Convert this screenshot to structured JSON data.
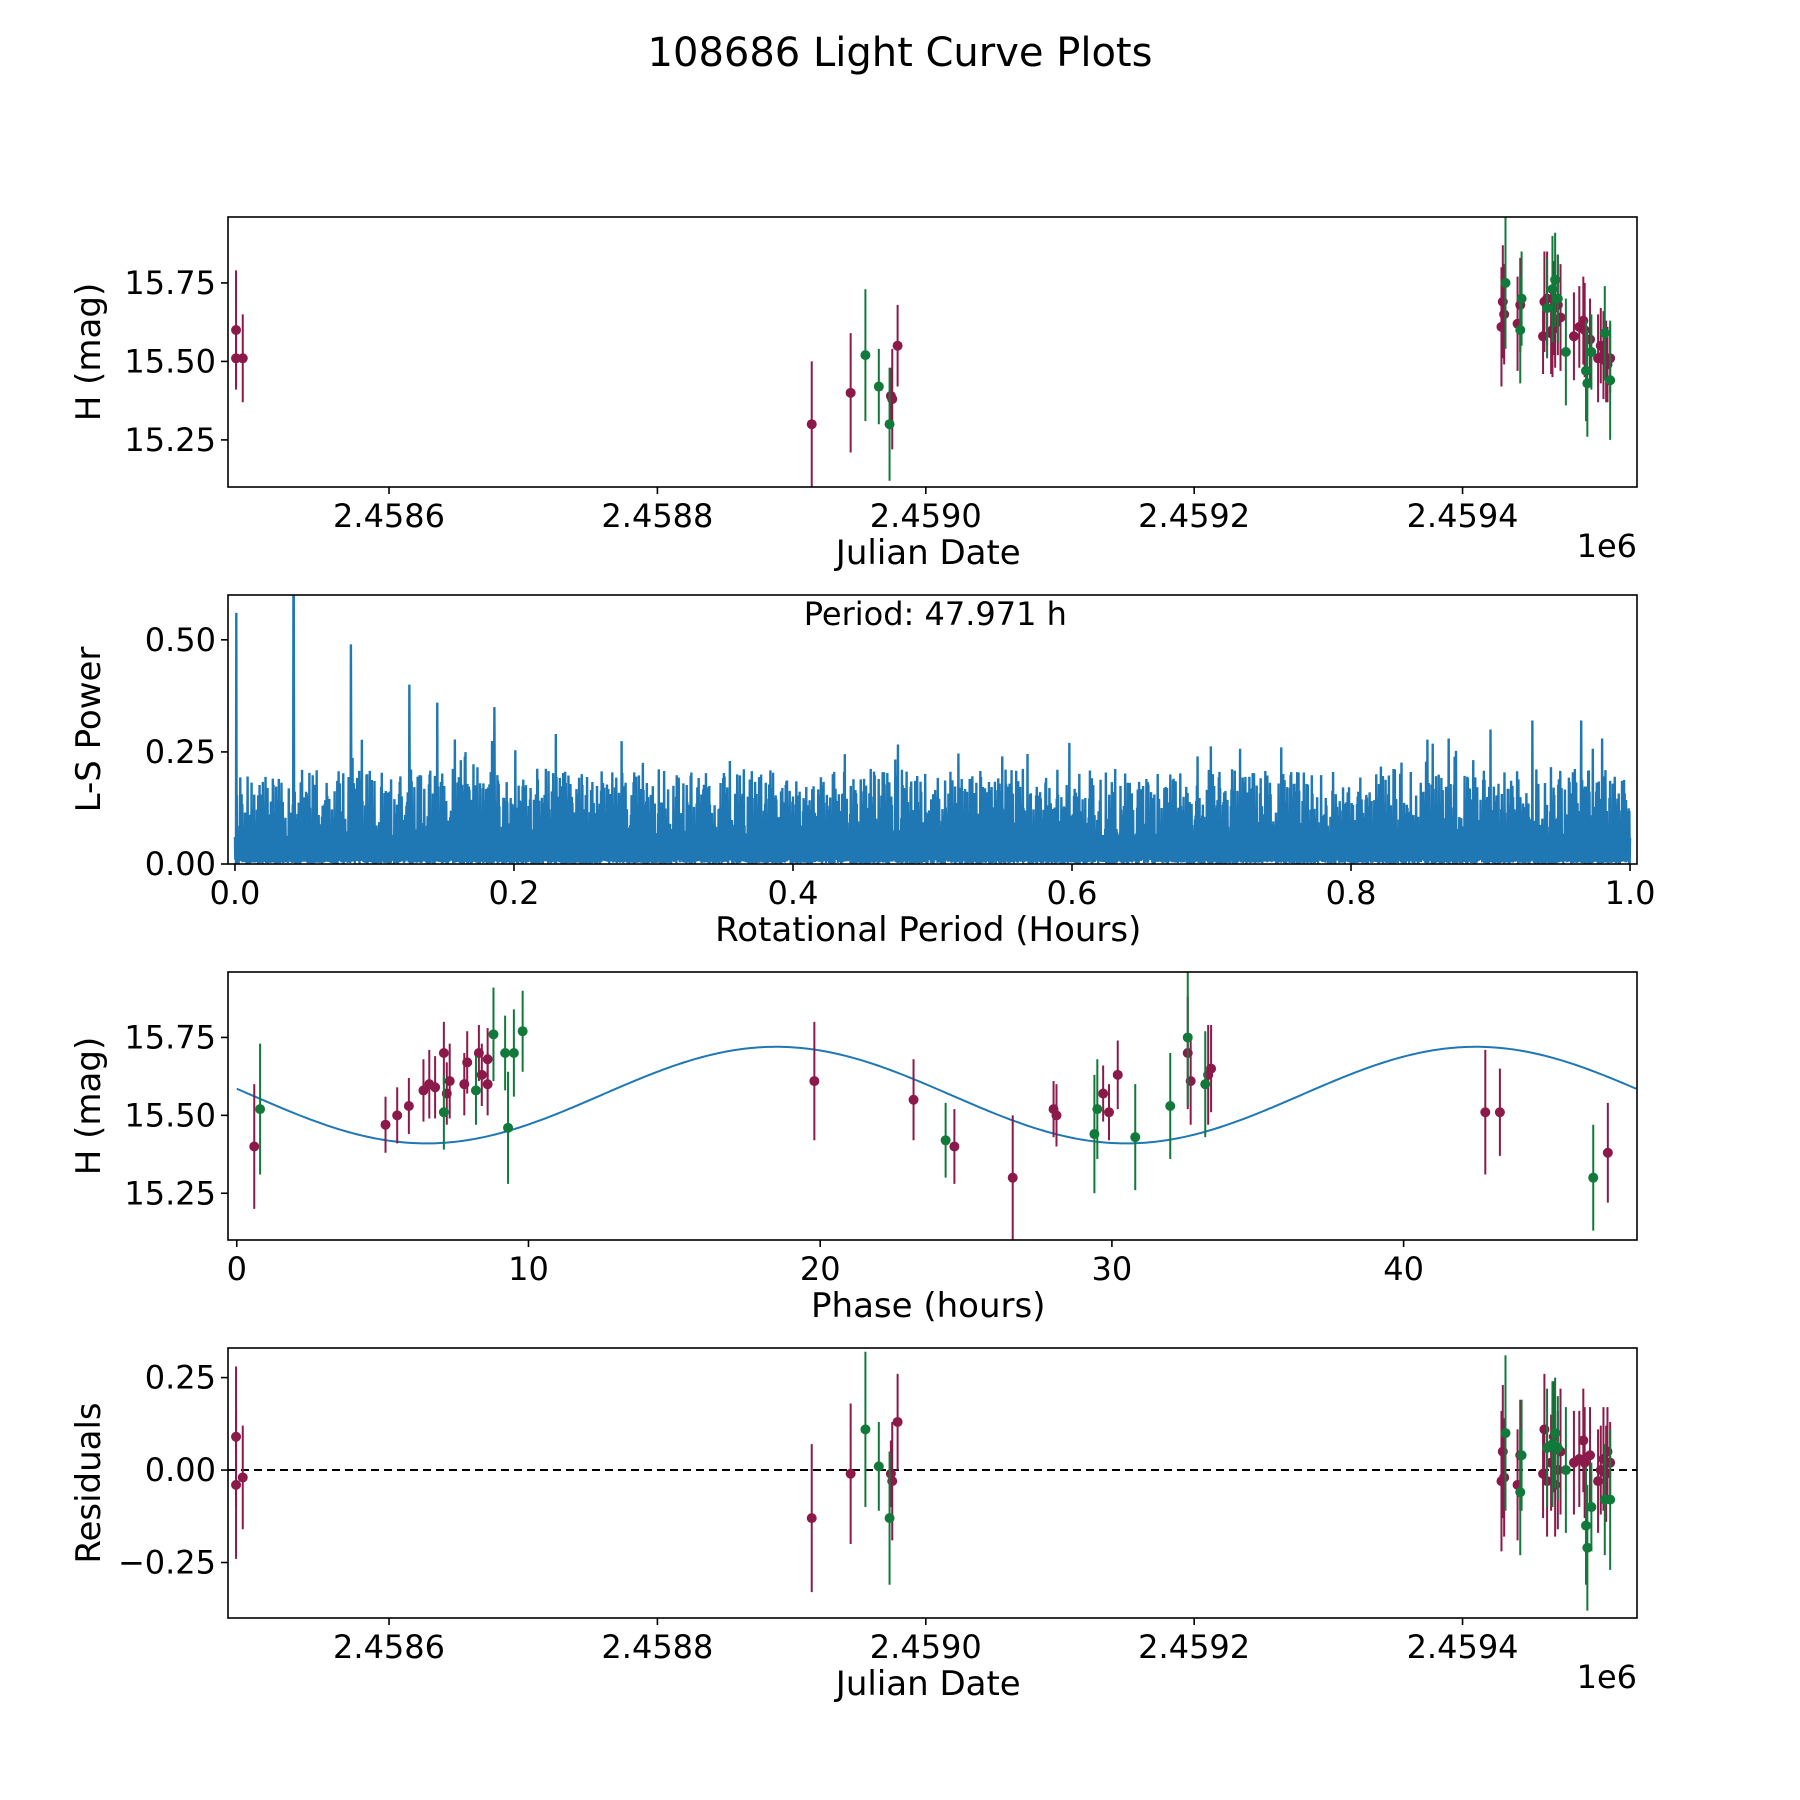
{
  "title": "108686 Light Curve Plots",
  "colors": {
    "band_a": "#8B1A4A",
    "band_b": "#117A3A",
    "model": "#1f77b4",
    "text": "#000000"
  },
  "chart_data": [
    {
      "type": "scatter",
      "name": "light-curve",
      "xlabel": "Julian Date",
      "ylabel": "H (mag)",
      "x_offset_label": "1e6",
      "xlim": [
        2.45848,
        2.45953
      ],
      "ylim": [
        15.1,
        15.96
      ],
      "xticks": [
        2.4586,
        2.4588,
        2.459,
        2.4592,
        2.4594
      ],
      "xtick_labels": [
        "2.4586",
        "2.4588",
        "2.4590",
        "2.4592",
        "2.4594"
      ],
      "yticks": [
        15.25,
        15.5,
        15.75
      ],
      "ytick_labels": [
        "15.25",
        "15.50",
        "15.75"
      ],
      "series": [
        {
          "name": "band_a",
          "color_key": "band_a",
          "points": [
            [
              2.458486,
              15.51,
              0.09
            ],
            [
              2.458486,
              15.6,
              0.19
            ],
            [
              2.458491,
              15.51,
              0.14
            ],
            [
              2.458915,
              15.3,
              0.2
            ],
            [
              2.458944,
              15.4,
              0.19
            ],
            [
              2.458974,
              15.39,
              0.09
            ],
            [
              2.458975,
              15.38,
              0.16
            ],
            [
              2.458979,
              15.55,
              0.13
            ],
            [
              2.459429,
              15.61,
              0.19
            ],
            [
              2.45943,
              15.69,
              0.18
            ],
            [
              2.459431,
              15.65,
              0.16
            ],
            [
              2.459441,
              15.62,
              0.15
            ],
            [
              2.459443,
              15.68,
              0.15
            ],
            [
              2.45946,
              15.58,
              0.12
            ],
            [
              2.459461,
              15.69,
              0.16
            ],
            [
              2.459463,
              15.7,
              0.15
            ],
            [
              2.459466,
              15.59,
              0.13
            ],
            [
              2.459467,
              15.6,
              0.15
            ],
            [
              2.459468,
              15.67,
              0.15
            ],
            [
              2.459469,
              15.62,
              0.14
            ],
            [
              2.459471,
              15.68,
              0.16
            ],
            [
              2.459473,
              15.64,
              0.17
            ],
            [
              2.459483,
              15.58,
              0.14
            ],
            [
              2.459487,
              15.61,
              0.13
            ],
            [
              2.45949,
              15.63,
              0.14
            ],
            [
              2.459491,
              15.6,
              0.15
            ],
            [
              2.459495,
              15.57,
              0.13
            ],
            [
              2.459501,
              15.51,
              0.14
            ],
            [
              2.459503,
              15.55,
              0.12
            ],
            [
              2.459505,
              15.52,
              0.14
            ],
            [
              2.459507,
              15.5,
              0.13
            ],
            [
              2.459508,
              15.49,
              0.12
            ],
            [
              2.45951,
              15.51,
              0.11
            ]
          ]
        },
        {
          "name": "band_b",
          "color_key": "band_b",
          "points": [
            [
              2.458955,
              15.52,
              0.21
            ],
            [
              2.458965,
              15.42,
              0.12
            ],
            [
              2.458973,
              15.3,
              0.18
            ],
            [
              2.459432,
              15.75,
              0.21
            ],
            [
              2.459443,
              15.6,
              0.17
            ],
            [
              2.459444,
              15.7,
              0.15
            ],
            [
              2.459463,
              15.67,
              0.16
            ],
            [
              2.459467,
              15.73,
              0.17
            ],
            [
              2.459469,
              15.76,
              0.15
            ],
            [
              2.459471,
              15.7,
              0.14
            ],
            [
              2.459477,
              15.53,
              0.17
            ],
            [
              2.459492,
              15.47,
              0.16
            ],
            [
              2.459493,
              15.43,
              0.17
            ],
            [
              2.459496,
              15.53,
              0.12
            ],
            [
              2.459506,
              15.59,
              0.15
            ],
            [
              2.45951,
              15.44,
              0.19
            ]
          ]
        }
      ]
    },
    {
      "type": "line",
      "name": "periodogram",
      "xlabel": "Rotational Period (Hours)",
      "ylabel": "L-S Power",
      "annotation": "Period: 47.971 h",
      "xlim": [
        -0.005,
        1.005
      ],
      "ylim": [
        0,
        0.6
      ],
      "xticks": [
        0.0,
        0.2,
        0.4,
        0.6,
        0.8,
        1.0
      ],
      "xtick_labels": [
        "0.0",
        "0.2",
        "0.4",
        "0.6",
        "0.8",
        "1.0"
      ],
      "yticks": [
        0.0,
        0.25,
        0.5
      ],
      "ytick_labels": [
        "0.00",
        "0.25",
        "0.50"
      ],
      "range": [
        0.0,
        1.0
      ],
      "noise_floor": 0.13,
      "noise_amp": 0.07,
      "peaks": [
        [
          0.001,
          0.56
        ],
        [
          0.042,
          0.6
        ],
        [
          0.083,
          0.49
        ],
        [
          0.125,
          0.4
        ],
        [
          0.145,
          0.36
        ],
        [
          0.186,
          0.35
        ],
        [
          0.23,
          0.29
        ],
        [
          0.55,
          0.24
        ],
        [
          0.69,
          0.24
        ],
        [
          0.75,
          0.26
        ],
        [
          0.87,
          0.28
        ],
        [
          0.9,
          0.3
        ],
        [
          0.93,
          0.32
        ],
        [
          0.965,
          0.32
        ],
        [
          0.98,
          0.28
        ]
      ]
    },
    {
      "type": "scatter",
      "name": "phased-curve",
      "xlabel": "Phase (hours)",
      "ylabel": "H (mag)",
      "xlim": [
        -0.3,
        48.0
      ],
      "ylim": [
        15.1,
        15.96
      ],
      "xticks": [
        0,
        10,
        20,
        30,
        40
      ],
      "xtick_labels": [
        "0",
        "10",
        "20",
        "30",
        "40"
      ],
      "yticks": [
        15.25,
        15.5,
        15.75
      ],
      "ytick_labels": [
        "15.25",
        "15.50",
        "15.75"
      ],
      "model": {
        "mean": 15.565,
        "amplitude": 0.155,
        "period": 23.9855,
        "phase0": 6.5,
        "xmax": 47.971
      },
      "series": [
        {
          "name": "band_a",
          "color_key": "band_a",
          "points": [
            [
              0.6,
              15.4,
              0.2
            ],
            [
              5.1,
              15.47,
              0.09
            ],
            [
              5.5,
              15.5,
              0.09
            ],
            [
              5.9,
              15.53,
              0.09
            ],
            [
              6.4,
              15.58,
              0.1
            ],
            [
              6.6,
              15.6,
              0.11
            ],
            [
              6.8,
              15.59,
              0.1
            ],
            [
              7.1,
              15.7,
              0.1
            ],
            [
              7.2,
              15.57,
              0.1
            ],
            [
              7.3,
              15.61,
              0.12
            ],
            [
              7.8,
              15.6,
              0.1
            ],
            [
              7.9,
              15.67,
              0.1
            ],
            [
              8.3,
              15.7,
              0.09
            ],
            [
              8.4,
              15.63,
              0.1
            ],
            [
              8.6,
              15.6,
              0.1
            ],
            [
              8.6,
              15.68,
              0.1
            ],
            [
              19.8,
              15.61,
              0.19
            ],
            [
              23.2,
              15.55,
              0.13
            ],
            [
              24.6,
              15.4,
              0.12
            ],
            [
              26.6,
              15.3,
              0.2
            ],
            [
              28.0,
              15.52,
              0.09
            ],
            [
              28.1,
              15.5,
              0.1
            ],
            [
              29.7,
              15.57,
              0.09
            ],
            [
              29.9,
              15.51,
              0.09
            ],
            [
              30.2,
              15.63,
              0.11
            ],
            [
              32.6,
              15.7,
              0.18
            ],
            [
              32.7,
              15.61,
              0.14
            ],
            [
              33.3,
              15.63,
              0.16
            ],
            [
              33.4,
              15.65,
              0.14
            ],
            [
              42.8,
              15.51,
              0.2
            ],
            [
              43.3,
              15.51,
              0.14
            ],
            [
              47.0,
              15.38,
              0.16
            ]
          ]
        },
        {
          "name": "band_b",
          "color_key": "band_b",
          "points": [
            [
              0.8,
              15.52,
              0.21
            ],
            [
              7.1,
              15.51,
              0.12
            ],
            [
              8.2,
              15.58,
              0.11
            ],
            [
              8.8,
              15.76,
              0.15
            ],
            [
              9.2,
              15.7,
              0.12
            ],
            [
              9.3,
              15.46,
              0.18
            ],
            [
              9.5,
              15.7,
              0.14
            ],
            [
              9.8,
              15.77,
              0.13
            ],
            [
              24.3,
              15.42,
              0.12
            ],
            [
              29.4,
              15.44,
              0.19
            ],
            [
              29.5,
              15.52,
              0.16
            ],
            [
              30.8,
              15.43,
              0.17
            ],
            [
              32.0,
              15.53,
              0.17
            ],
            [
              32.6,
              15.75,
              0.22
            ],
            [
              33.2,
              15.6,
              0.17
            ],
            [
              46.5,
              15.3,
              0.17
            ]
          ]
        }
      ]
    },
    {
      "type": "scatter",
      "name": "residuals",
      "xlabel": "Julian Date",
      "ylabel": "Residuals",
      "x_offset_label": "1e6",
      "xlim": [
        2.45848,
        2.45953
      ],
      "ylim": [
        -0.4,
        0.33
      ],
      "reference_line": 0.0,
      "xticks": [
        2.4586,
        2.4588,
        2.459,
        2.4592,
        2.4594
      ],
      "xtick_labels": [
        "2.4586",
        "2.4588",
        "2.4590",
        "2.4592",
        "2.4594"
      ],
      "yticks": [
        -0.25,
        0.0,
        0.25
      ],
      "ytick_labels": [
        "−0.25",
        "0.00",
        "0.25"
      ],
      "series": [
        {
          "name": "band_a",
          "color_key": "band_a",
          "points": [
            [
              2.458486,
              -0.04,
              0.2
            ],
            [
              2.458486,
              0.09,
              0.19
            ],
            [
              2.458491,
              -0.02,
              0.14
            ],
            [
              2.458915,
              -0.13,
              0.2
            ],
            [
              2.458944,
              -0.01,
              0.19
            ],
            [
              2.458974,
              -0.01,
              0.09
            ],
            [
              2.458975,
              -0.03,
              0.16
            ],
            [
              2.458979,
              0.13,
              0.13
            ],
            [
              2.459429,
              -0.03,
              0.19
            ],
            [
              2.45943,
              0.05,
              0.18
            ],
            [
              2.459431,
              -0.02,
              0.16
            ],
            [
              2.459441,
              -0.04,
              0.15
            ],
            [
              2.459443,
              0.04,
              0.15
            ],
            [
              2.45946,
              -0.01,
              0.12
            ],
            [
              2.459461,
              0.11,
              0.15
            ],
            [
              2.459463,
              -0.03,
              0.15
            ],
            [
              2.459466,
              0.02,
              0.13
            ],
            [
              2.459467,
              0.06,
              0.15
            ],
            [
              2.459468,
              0.09,
              0.15
            ],
            [
              2.459469,
              -0.04,
              0.14
            ],
            [
              2.459471,
              0.0,
              0.16
            ],
            [
              2.459473,
              0.05,
              0.17
            ],
            [
              2.459483,
              0.02,
              0.14
            ],
            [
              2.459487,
              0.03,
              0.13
            ],
            [
              2.45949,
              0.08,
              0.14
            ],
            [
              2.459491,
              0.02,
              0.15
            ],
            [
              2.459495,
              0.04,
              0.13
            ],
            [
              2.459501,
              -0.03,
              0.14
            ],
            [
              2.459503,
              0.0,
              0.12
            ],
            [
              2.459505,
              0.03,
              0.14
            ],
            [
              2.459507,
              -0.01,
              0.13
            ],
            [
              2.459508,
              0.05,
              0.12
            ],
            [
              2.45951,
              0.02,
              0.11
            ]
          ]
        },
        {
          "name": "band_b",
          "color_key": "band_b",
          "points": [
            [
              2.458955,
              0.11,
              0.21
            ],
            [
              2.458965,
              0.01,
              0.12
            ],
            [
              2.458973,
              -0.13,
              0.18
            ],
            [
              2.459432,
              0.1,
              0.21
            ],
            [
              2.459443,
              -0.06,
              0.17
            ],
            [
              2.459444,
              0.04,
              0.15
            ],
            [
              2.459463,
              0.06,
              0.16
            ],
            [
              2.459467,
              0.07,
              0.17
            ],
            [
              2.459469,
              0.1,
              0.15
            ],
            [
              2.459471,
              0.06,
              0.14
            ],
            [
              2.459477,
              0.0,
              0.17
            ],
            [
              2.459492,
              -0.15,
              0.16
            ],
            [
              2.459493,
              -0.21,
              0.17
            ],
            [
              2.459496,
              -0.1,
              0.12
            ],
            [
              2.459506,
              -0.08,
              0.15
            ],
            [
              2.45951,
              -0.08,
              0.19
            ]
          ]
        }
      ]
    }
  ]
}
